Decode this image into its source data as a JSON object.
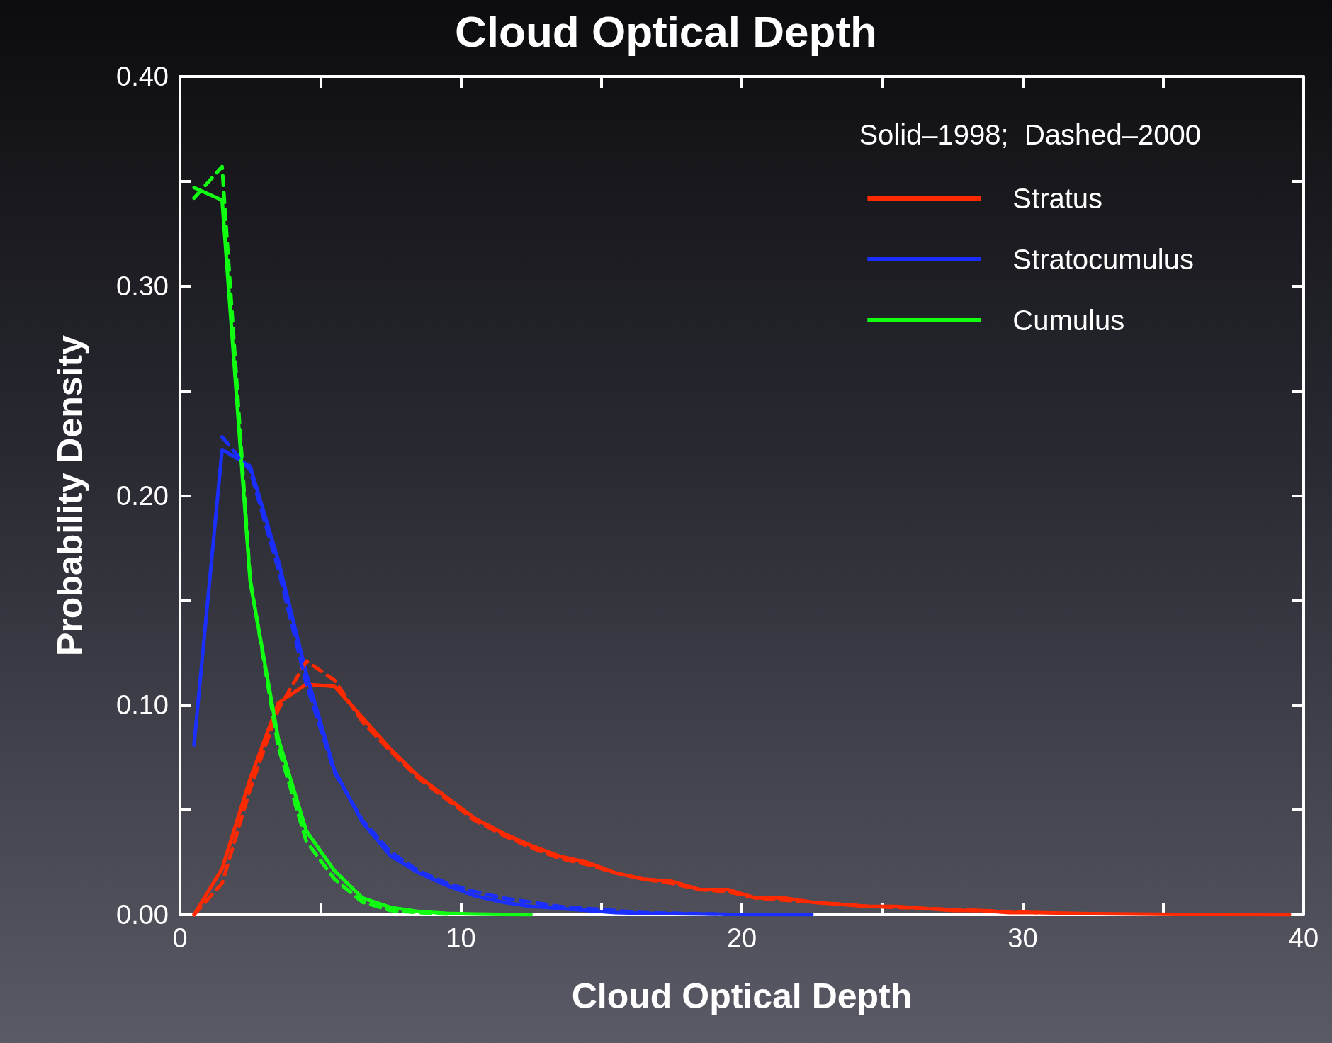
{
  "chart_data": {
    "type": "line",
    "title": "Cloud Optical Depth",
    "xlabel": "Cloud Optical Depth",
    "ylabel": "Probability Density",
    "legend_title": "Solid–1998;  Dashed–2000",
    "xlim": [
      0,
      40
    ],
    "ylim": [
      0,
      0.4
    ],
    "xticks": [
      0,
      {
        "value": 5,
        "label": null
      },
      10,
      {
        "value": 15,
        "label": null
      },
      20,
      {
        "value": 25,
        "label": null
      },
      30,
      {
        "value": 35,
        "label": null
      },
      40
    ],
    "yticks": [
      {
        "value": 0,
        "label": "0.00"
      },
      {
        "value": 0.05,
        "label": null
      },
      {
        "value": 0.1,
        "label": "0.10"
      },
      {
        "value": 0.15,
        "label": null
      },
      {
        "value": 0.2,
        "label": "0.20"
      },
      {
        "value": 0.25,
        "label": null
      },
      {
        "value": 0.3,
        "label": "0.30"
      },
      {
        "value": 0.35,
        "label": null
      },
      {
        "value": 0.4,
        "label": "0.40"
      }
    ],
    "grid": false,
    "legend": "top right",
    "marker": "none",
    "line_style": "solid",
    "series": [
      {
        "name": "Stratus",
        "color": "#ff2a00",
        "x": [
          0.5,
          1.5,
          2.5,
          3.5,
          4.5,
          5.5,
          6.5,
          7.5,
          8.5,
          9.5,
          10.5,
          11.5,
          12.5,
          13.5,
          14.5,
          15.5,
          16.5,
          17.5,
          18.5,
          19.5,
          20.5,
          21.5,
          22.5,
          23.5,
          24.5,
          25.5,
          26.5,
          27.5,
          28.5,
          29.5,
          30.5,
          32.5,
          35.5,
          39.5
        ],
        "values": [
          0.0,
          0.022,
          0.065,
          0.101,
          0.11,
          0.109,
          0.094,
          0.079,
          0.066,
          0.056,
          0.046,
          0.039,
          0.033,
          0.028,
          0.025,
          0.02,
          0.017,
          0.016,
          0.012,
          0.012,
          0.008,
          0.008,
          0.006,
          0.005,
          0.004,
          0.004,
          0.003,
          0.002,
          0.002,
          0.001,
          0.001,
          0.0005,
          0.0002,
          0.0
        ]
      },
      {
        "name": "Stratocumulus",
        "color": "#1a2fff",
        "x": [
          0.5,
          1.5,
          2.5,
          3.5,
          4.5,
          5.5,
          6.5,
          7.5,
          8.5,
          9.5,
          10.5,
          11.5,
          12.5,
          13.5,
          14.5,
          15.5,
          16.5,
          17.5,
          19.5,
          22.5
        ],
        "values": [
          0.081,
          0.222,
          0.214,
          0.169,
          0.115,
          0.069,
          0.044,
          0.028,
          0.02,
          0.014,
          0.009,
          0.006,
          0.004,
          0.003,
          0.002,
          0.001,
          0.0007,
          0.0005,
          0.0002,
          0.0
        ]
      },
      {
        "name": "Cumulus",
        "color": "#11ff11",
        "x": [
          0.5,
          1.5,
          2.5,
          3.5,
          4.5,
          5.5,
          6.5,
          7.5,
          8.5,
          9.5,
          10.5,
          12.5
        ],
        "values": [
          0.347,
          0.341,
          0.159,
          0.084,
          0.04,
          0.021,
          0.008,
          0.0035,
          0.0015,
          0.0007,
          0.0003,
          0.0
        ]
      },
      {
        "color": "#ff2a00",
        "line_style": "dashed",
        "x": [
          0.5,
          1.5,
          2.5,
          3.5,
          4.5,
          5.5,
          6.5,
          7.5,
          8.5,
          9.5,
          10.5,
          11.5,
          12.5,
          13.5,
          14.5,
          15.5,
          16.5,
          17.5,
          18.5,
          19.5,
          20.5,
          22.5,
          24.5,
          26.5,
          28.5,
          30.5
        ],
        "values": [
          0.0,
          0.015,
          0.06,
          0.098,
          0.121,
          0.112,
          0.092,
          0.078,
          0.065,
          0.055,
          0.045,
          0.038,
          0.032,
          0.027,
          0.024,
          0.02,
          0.017,
          0.015,
          0.012,
          0.011,
          0.008,
          0.006,
          0.004,
          0.003,
          0.002,
          0.001
        ]
      },
      {
        "color": "#1a2fff",
        "line_style": "dashed",
        "x": [
          1.5,
          2.5,
          3.5,
          4.5,
          5.5,
          6.5,
          7.5,
          8.5,
          9.5,
          10.5,
          11.5,
          12.5,
          13.5,
          14.5,
          16.5,
          19.5
        ],
        "values": [
          0.228,
          0.212,
          0.165,
          0.11,
          0.068,
          0.045,
          0.03,
          0.021,
          0.015,
          0.011,
          0.008,
          0.006,
          0.004,
          0.003,
          0.001,
          0.0002
        ]
      },
      {
        "color": "#11ff11",
        "line_style": "dashed",
        "x": [
          0.5,
          1.5,
          2.5,
          3.5,
          4.5,
          5.5,
          6.5,
          7.5,
          8.5,
          9.5
        ],
        "values": [
          0.342,
          0.357,
          0.16,
          0.08,
          0.035,
          0.017,
          0.006,
          0.002,
          0.001,
          0.0003
        ]
      }
    ]
  }
}
